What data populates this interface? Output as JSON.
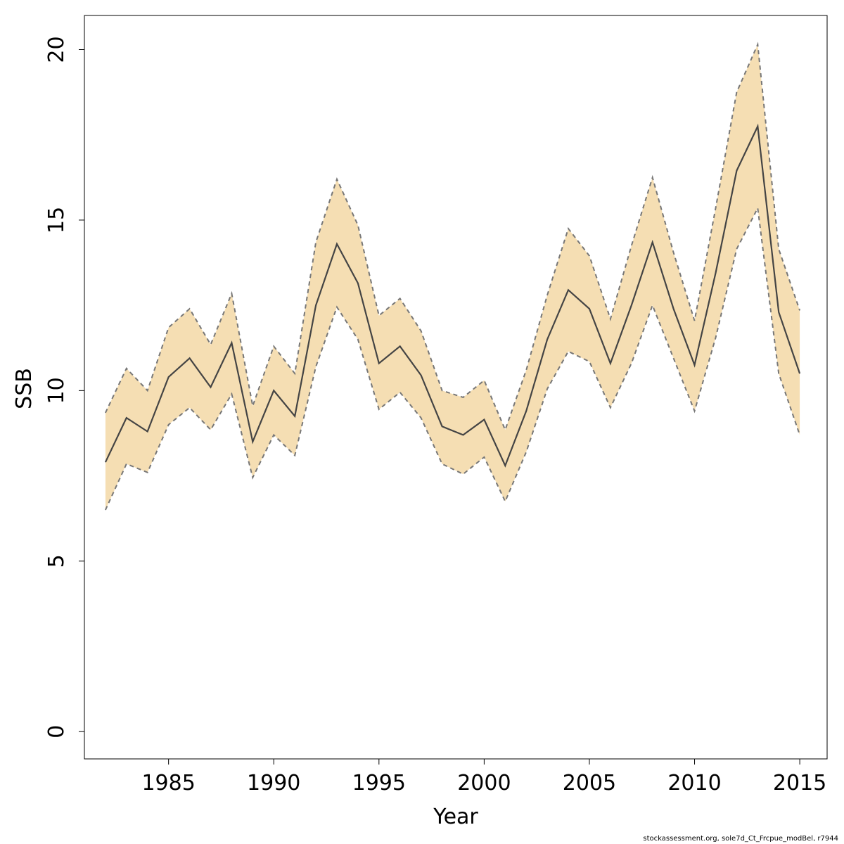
{
  "chart_data": {
    "type": "area",
    "xlabel": "Year",
    "ylabel": "SSB",
    "xlim": [
      1981,
      2016.3
    ],
    "ylim": [
      -0.8,
      21
    ],
    "x_ticks": [
      1985,
      1990,
      1995,
      2000,
      2005,
      2010,
      2015
    ],
    "y_ticks": [
      0,
      5,
      10,
      15,
      20
    ],
    "x": [
      1982,
      1983,
      1984,
      1985,
      1986,
      1987,
      1988,
      1989,
      1990,
      1991,
      1992,
      1993,
      1994,
      1995,
      1996,
      1997,
      1998,
      1999,
      2000,
      2001,
      2002,
      2003,
      2004,
      2005,
      2006,
      2007,
      2008,
      2009,
      2010,
      2011,
      2012,
      2013,
      2014,
      2015
    ],
    "series": [
      {
        "role": "estimate",
        "values": [
          7.9,
          9.2,
          8.8,
          10.4,
          10.95,
          10.1,
          11.4,
          8.5,
          10.0,
          9.25,
          12.5,
          14.3,
          13.15,
          10.8,
          11.3,
          10.45,
          8.95,
          8.7,
          9.15,
          7.8,
          9.4,
          11.5,
          12.95,
          12.4,
          10.8,
          12.5,
          14.35,
          12.4,
          10.75,
          13.45,
          16.45,
          17.75,
          12.3,
          10.5
        ],
        "color": "#444444"
      },
      {
        "role": "upper",
        "values": [
          9.35,
          10.65,
          10.0,
          11.85,
          12.4,
          11.35,
          12.85,
          9.55,
          11.3,
          10.5,
          14.35,
          16.2,
          14.85,
          12.2,
          12.7,
          11.75,
          10.0,
          9.8,
          10.3,
          8.85,
          10.6,
          12.8,
          14.75,
          13.95,
          12.1,
          14.25,
          16.25,
          14.05,
          12.05,
          15.35,
          18.75,
          20.15,
          14.15,
          12.35
        ],
        "color": "#777777"
      },
      {
        "role": "lower",
        "values": [
          6.5,
          7.85,
          7.6,
          9.0,
          9.5,
          8.85,
          9.9,
          7.45,
          8.7,
          8.1,
          10.7,
          12.45,
          11.5,
          9.45,
          9.95,
          9.2,
          7.85,
          7.55,
          8.05,
          6.75,
          8.2,
          10.05,
          11.15,
          10.85,
          9.5,
          10.8,
          12.5,
          10.95,
          9.4,
          11.55,
          14.15,
          15.35,
          10.5,
          8.7
        ],
        "color": "#777777"
      }
    ],
    "band_color": "#f5deb3",
    "grid": false
  },
  "footer": "stockassessment.org, sole7d_Ct_Frcpue_modBel, r7944"
}
